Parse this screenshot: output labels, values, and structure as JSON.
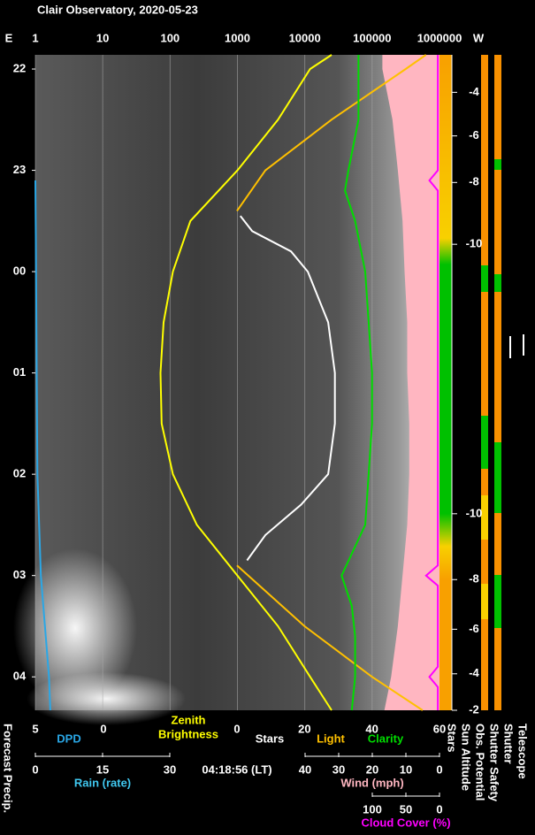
{
  "title": "Clair Observatory, 2020-05-23",
  "chart_data": {
    "type": "line",
    "east_label": "E",
    "west_label": "W",
    "time_lim": [
      21.86,
      28.33
    ],
    "time_ticks": [
      22,
      23,
      {
        "value": 24,
        "label": "00"
      },
      {
        "value": 25,
        "label": "01"
      },
      {
        "value": 26,
        "label": "02"
      },
      {
        "value": 27,
        "label": "03"
      },
      {
        "value": 28,
        "label": "04"
      }
    ],
    "grid": true,
    "axes": {
      "zenith": {
        "label": [
          "Zenith",
          "Brightness"
        ],
        "lim": [
          1,
          1000000
        ],
        "log": true,
        "ticks": [
          1,
          10,
          100,
          1000,
          10000,
          100000,
          1000000
        ],
        "color": "#ffff00"
      },
      "dpd": {
        "lim": [
          5,
          0
        ],
        "ticks": [
          5,
          0
        ],
        "color": "#ffffff"
      },
      "sla": {
        "lim": [
          0,
          60
        ],
        "ticks": [
          0,
          20,
          40,
          60
        ],
        "color": "#ffffff"
      },
      "rain": {
        "label": "Rain (rate)",
        "lim": [
          0,
          30
        ],
        "ticks": [
          0,
          15,
          30
        ],
        "color": "#40c8f0"
      },
      "wind": {
        "label": "Wind (mph)",
        "lim": [
          40,
          0
        ],
        "ticks": [
          40,
          30,
          20,
          10,
          0
        ],
        "color": "#ffb6c1"
      },
      "cloud": {
        "label": "Cloud Cover (%)",
        "lim": [
          100,
          0
        ],
        "ticks": [
          100,
          50,
          0
        ],
        "color": "#ff00ff"
      }
    },
    "series": [
      {
        "axis": "cloud",
        "style": "area",
        "color": "#ffb6c1",
        "x": [
          21.86,
          22,
          22.5,
          23,
          23.5,
          24,
          24.5,
          25,
          25.5,
          26,
          26.5,
          27,
          27.5,
          28,
          28.33
        ],
        "values": [
          85,
          85,
          70,
          62,
          55,
          52,
          48,
          48,
          45,
          45,
          48,
          55,
          62,
          72,
          82
        ]
      },
      {
        "axis": "zenith",
        "color": "#ffff00",
        "x": [
          21.86,
          22,
          22.5,
          23,
          23.5,
          24,
          24.5,
          25,
          25.5,
          26,
          26.5,
          27,
          27.5,
          28,
          28.33
        ],
        "values": [
          25000,
          12000,
          4000,
          1000,
          200,
          110,
          80,
          72,
          75,
          110,
          250,
          1000,
          4000,
          12000,
          25000
        ]
      },
      {
        "name": "Light",
        "axis": "sla",
        "color": "#ffc000",
        "x": [
          21.86,
          22,
          22.5,
          23,
          23.4,
          25,
          26.9,
          27.5,
          28,
          28.33
        ],
        "values": [
          56,
          50,
          28,
          8.4,
          0,
          null,
          0,
          20,
          40,
          55
        ]
      },
      {
        "name": "Stars",
        "axis": "sla",
        "color": "#ffffff",
        "x": [
          23.45,
          23.6,
          23.8,
          24,
          24.5,
          25,
          25.5,
          26,
          26.3,
          26.6,
          26.85
        ],
        "values": [
          1,
          4.5,
          16,
          21,
          27,
          29,
          29,
          27,
          19,
          8.4,
          3
        ]
      },
      {
        "name": "Clarity",
        "axis": "sla",
        "color": "#00dd00",
        "x": [
          21.86,
          22,
          22.5,
          23,
          23.2,
          23.5,
          24,
          24.5,
          25,
          25.5,
          26,
          26.5,
          27,
          27.3,
          27.6,
          28,
          28.33
        ],
        "values": [
          36,
          36,
          36,
          33,
          32,
          35,
          38,
          39,
          40,
          40,
          39,
          38,
          31,
          34,
          35,
          35,
          34
        ]
      },
      {
        "name": "DPD",
        "axis": "dpd",
        "color": "#2aa7e6",
        "x": [
          23.1,
          24,
          25,
          26,
          27,
          27.5,
          28,
          28.33
        ],
        "values": [
          5,
          4.95,
          4.9,
          4.85,
          4.6,
          4.3,
          4.0,
          3.9
        ]
      },
      {
        "axis": "wind",
        "color": "#ff00ff",
        "x": [
          21.86,
          23.0,
          23.1,
          23.2,
          23.4,
          26.9,
          27.0,
          27.1,
          27.9,
          28.0,
          28.1,
          28.33
        ],
        "values": [
          0.5,
          0.5,
          3,
          0.5,
          0.5,
          0.5,
          4,
          0.5,
          0.5,
          3,
          0.5,
          0.5
        ]
      }
    ],
    "sun_altitude": {
      "x": [
        22.23,
        22.66,
        23.12,
        23.73,
        26.39,
        27.04,
        27.53,
        27.97,
        28.33
      ],
      "values": [
        -4,
        -6,
        -8,
        -10,
        -10,
        -8,
        -6,
        -4,
        -2
      ]
    },
    "local_time": "04:18:56 (LT)",
    "left_label": "Forecast Precip.",
    "strip_labels": [
      "Stars",
      "Sun Altitude",
      "Obs. Potential",
      "Shutter Safety",
      "Shutter",
      "Telescope"
    ]
  }
}
